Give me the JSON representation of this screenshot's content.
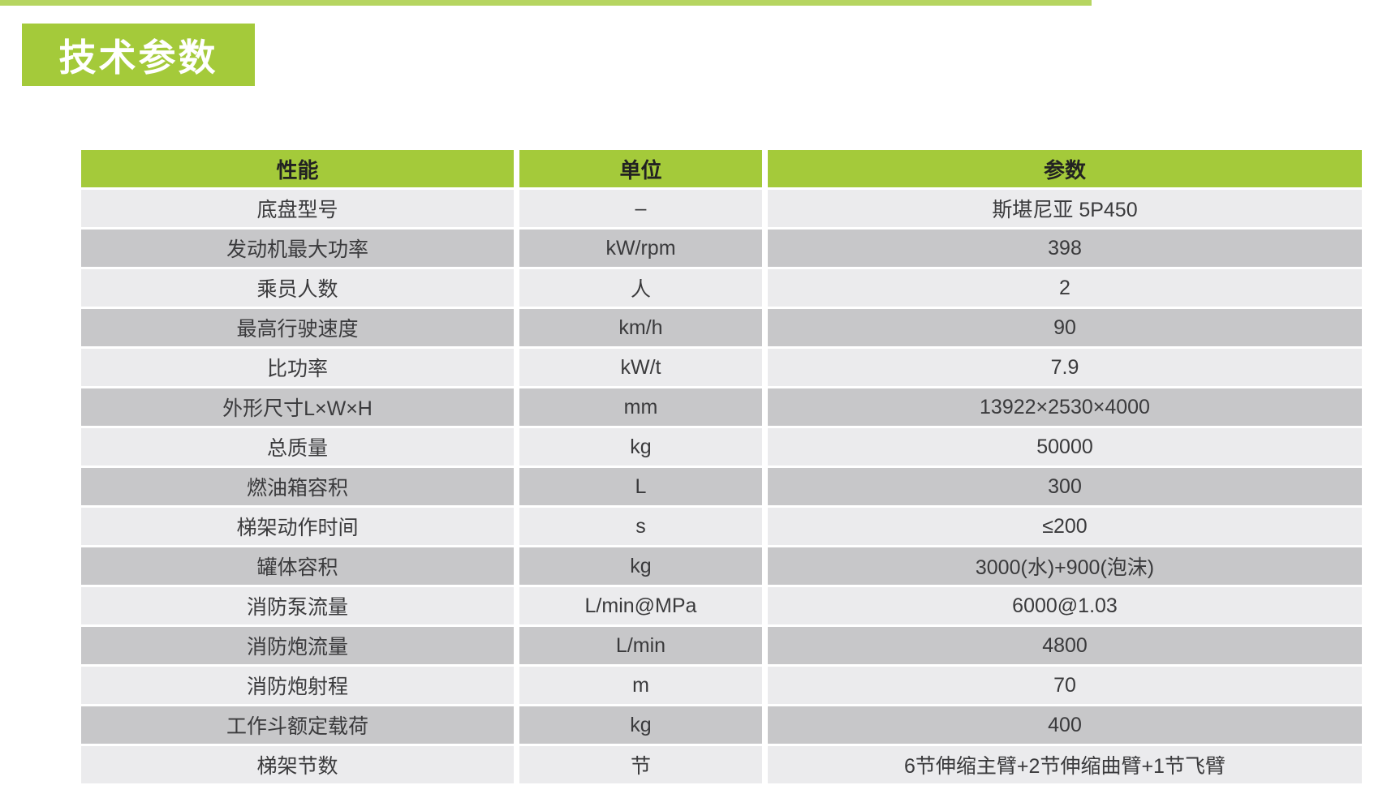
{
  "page": {
    "title_badge": "技术参数"
  },
  "colors": {
    "accent_green": "#a4ca3a",
    "row_light": "#ebebed",
    "row_dark": "#c7c7c9",
    "text": "#3a3a3c"
  },
  "table": {
    "headers": [
      "性能",
      "单位",
      "参数"
    ],
    "rows": [
      {
        "name": "底盘型号",
        "unit": "–",
        "value": "斯堪尼亚 5P450"
      },
      {
        "name": "发动机最大功率",
        "unit": "kW/rpm",
        "value": "398"
      },
      {
        "name": "乘员人数",
        "unit": "人",
        "value": "2"
      },
      {
        "name": "最高行驶速度",
        "unit": "km/h",
        "value": "90"
      },
      {
        "name": "比功率",
        "unit": "kW/t",
        "value": "7.9"
      },
      {
        "name": "外形尺寸L×W×H",
        "unit": "mm",
        "value": "13922×2530×4000"
      },
      {
        "name": "总质量",
        "unit": "kg",
        "value": "50000"
      },
      {
        "name": "燃油箱容积",
        "unit": "L",
        "value": "300"
      },
      {
        "name": "梯架动作时间",
        "unit": "s",
        "value": "≤200"
      },
      {
        "name": "罐体容积",
        "unit": "kg",
        "value": "3000(水)+900(泡沫)"
      },
      {
        "name": "消防泵流量",
        "unit": "L/min@MPa",
        "value": "6000@1.03"
      },
      {
        "name": "消防炮流量",
        "unit": "L/min",
        "value": "4800"
      },
      {
        "name": "消防炮射程",
        "unit": "m",
        "value": "70"
      },
      {
        "name": "工作斗额定载荷",
        "unit": "kg",
        "value": "400"
      },
      {
        "name": "梯架节数",
        "unit": "节",
        "value": "6节伸缩主臂+2节伸缩曲臂+1节飞臂"
      }
    ]
  }
}
